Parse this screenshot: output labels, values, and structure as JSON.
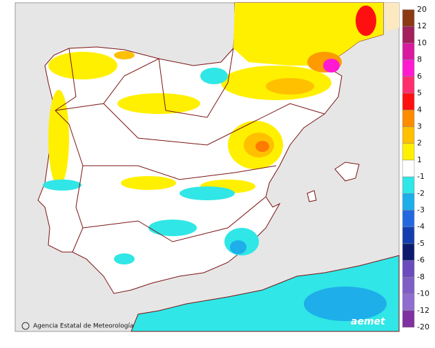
{
  "legend": {
    "labels": [
      "20",
      "12",
      "10",
      "8",
      "6",
      "5",
      "4",
      "3",
      "2",
      "1",
      "-1",
      "-2",
      "-3",
      "-4",
      "-5",
      "-6",
      "-8",
      "-10",
      "-12",
      "-20"
    ],
    "colors": [
      "#8b3a14",
      "#a3205c",
      "#d81aa0",
      "#ff1ad2",
      "#ff2f6e",
      "#ff1010",
      "#ff8c00",
      "#ffc000",
      "#fff000",
      "#ffffff",
      "#30e6e6",
      "#1eaeea",
      "#2468e0",
      "#123eb0",
      "#0c1a6e",
      "#6a4cbc",
      "#7f5fc6",
      "#8f6ecf",
      "#8030a0"
    ]
  },
  "credit": "Agencia Estatal de Meteorología",
  "logo": "aemet"
}
